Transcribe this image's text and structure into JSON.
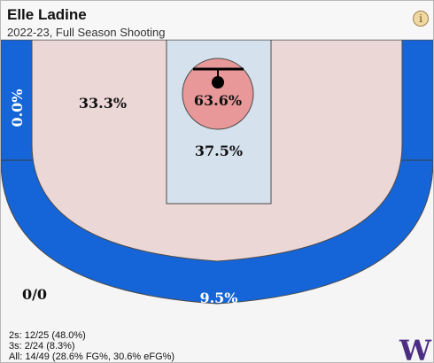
{
  "header": {
    "player_name": "Elle Ladine",
    "season_label": "2022-23, Full Season Shooting",
    "info_icon": "info-icon",
    "info_glyph": "i"
  },
  "court": {
    "zones": {
      "left_corner_three": "0.0%",
      "left_midrange": "33.3%",
      "restricted_area": "63.6%",
      "paint": "37.5%",
      "above_break_three": "9.5%",
      "right_corner_three": "",
      "backcourt": "0/0"
    }
  },
  "stats": {
    "twos": "2s: 12/25 (48.0%)",
    "threes": "3s: 2/24 (8.3%)",
    "all": "All: 14/49 (28.6% FG%, 30.6% eFG%)"
  },
  "logo": {
    "icon": "team-logo",
    "text": "W"
  },
  "colors": {
    "three_zone": "#1565d8",
    "midrange_zone": "#ecd7d7",
    "paint_zone": "#d6e1ee",
    "restricted_area": "#e89898",
    "backcourt": "#f5f5f5",
    "logo": "#4b2e83"
  }
}
